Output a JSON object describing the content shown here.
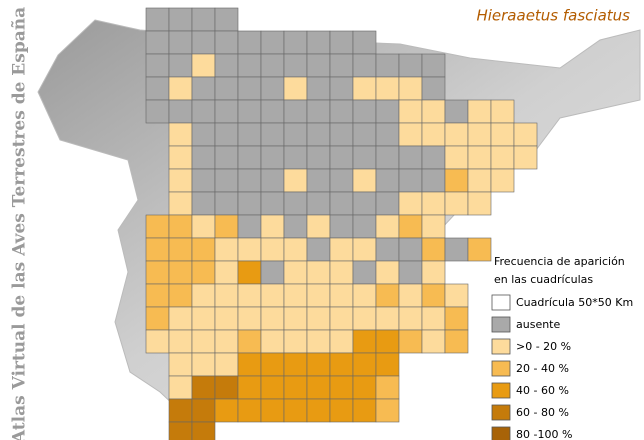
{
  "title": "Hieraaetus fasciatus",
  "side_title": "Atlas Virtual de las Aves Terrestres de España",
  "legend": {
    "title": [
      "Frecuencia de aparición",
      "en las cuadrículas"
    ],
    "items": [
      {
        "label": "Cuadrícula 50*50 Km",
        "color": "#ffffff"
      },
      {
        "label": "ausente",
        "color": "#a9a9a9"
      },
      {
        "label": ">0 - 20 %",
        "color": "#fddb9c"
      },
      {
        "label": "20 - 40 %",
        "color": "#f7bb52"
      },
      {
        "label": "40 - 60 %",
        "color": "#e89b12"
      },
      {
        "label": "60 - 80 %",
        "color": "#c57b0b"
      },
      {
        "label": "80 -100 %",
        "color": "#a86308"
      }
    ]
  }
}
